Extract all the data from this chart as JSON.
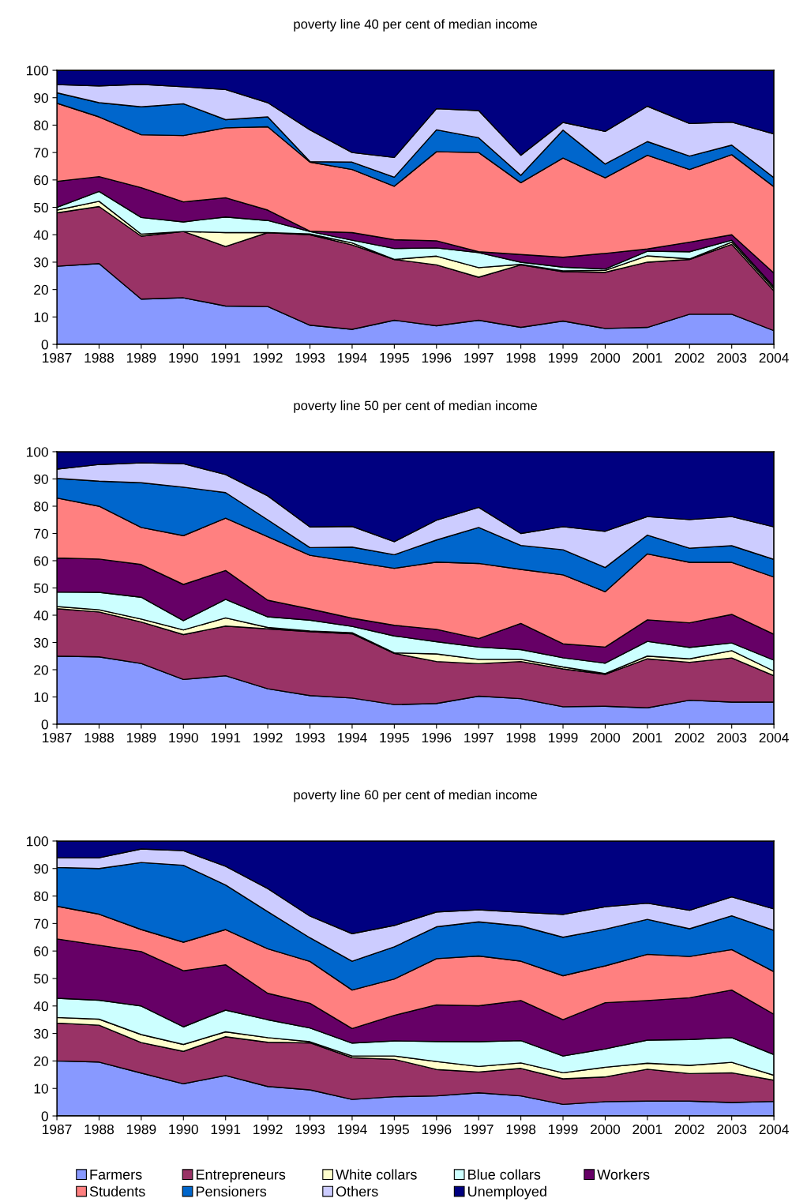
{
  "chart_data": [
    {
      "type": "area",
      "stacked": true,
      "title": "poverty line 40 per cent of median income",
      "ylim": [
        0,
        100
      ],
      "yticks": [
        0,
        10,
        20,
        30,
        40,
        50,
        60,
        70,
        80,
        90,
        100
      ],
      "grid": false,
      "legend": "bottom",
      "categories": [
        "1987",
        "1988",
        "1989",
        "1990",
        "1991",
        "1992",
        "1993",
        "1994",
        "1995",
        "1996",
        "1997",
        "1998",
        "1999",
        "2000",
        "2001",
        "2002",
        "2003",
        "2004"
      ],
      "series": [
        {
          "name": "Farmers",
          "color": "#8899ff",
          "values": [
            28.5,
            29.5,
            16.5,
            17,
            14,
            13.8,
            7,
            5.5,
            8.8,
            6.8,
            8.8,
            6.2,
            8.5,
            5.8,
            6.2,
            11,
            11,
            5
          ]
        },
        {
          "name": "Entrepreneurs",
          "color": "#993366",
          "values": [
            19.5,
            20.8,
            23,
            24.2,
            21.7,
            27,
            33,
            30.8,
            22.2,
            22.2,
            15.7,
            22.8,
            18,
            20.5,
            23.8,
            20,
            25.5,
            14.5
          ]
        },
        {
          "name": "White collars",
          "color": "#ffffcc",
          "values": [
            1,
            1.9,
            0.7,
            0,
            5.1,
            0,
            0.3,
            0.7,
            0,
            3.2,
            3.5,
            0.2,
            0.3,
            0.7,
            2.3,
            0.2,
            0.8,
            0.8
          ]
        },
        {
          "name": "Blue collars",
          "color": "#ccffff",
          "values": [
            1,
            3.6,
            6.1,
            3.5,
            5.7,
            4.4,
            0.9,
            1,
            4,
            3,
            5.5,
            0.8,
            1.4,
            0.5,
            1.7,
            2.6,
            0.7,
            0.7
          ]
        },
        {
          "name": "Workers",
          "color": "#660066",
          "values": [
            9.5,
            5.4,
            10.9,
            7.3,
            7,
            3.8,
            0.1,
            2.8,
            3.2,
            2.6,
            0.3,
            2.8,
            3.6,
            5.7,
            0.8,
            3.5,
            2,
            5
          ]
        },
        {
          "name": "Students",
          "color": "#ff8080",
          "values": [
            28.5,
            21.8,
            19.3,
            24.2,
            25.5,
            30.4,
            25.2,
            23,
            19.5,
            32.5,
            36.2,
            26.2,
            36.2,
            27.6,
            34.2,
            26.5,
            29.2,
            31.5
          ]
        },
        {
          "name": "Pensioners",
          "color": "#0066cc",
          "values": [
            3.8,
            5.2,
            10.2,
            11.6,
            3,
            3.6,
            0.2,
            2.7,
            3.3,
            8,
            5.4,
            2.7,
            10.2,
            5,
            5,
            4.9,
            3.5,
            3.3
          ]
        },
        {
          "name": "Others",
          "color": "#ccccff",
          "values": [
            3,
            6.1,
            8.2,
            6.2,
            11,
            5.2,
            11.6,
            3.5,
            7.2,
            7.7,
            9.9,
            7.3,
            2.8,
            11.9,
            12.9,
            11.9,
            8.4,
            16
          ]
        },
        {
          "name": "Unemployed",
          "color": "#000080",
          "values": [
            5.2,
            5.7,
            5.1,
            6,
            7,
            11.8,
            21.7,
            30,
            31.8,
            14,
            14.7,
            31,
            19,
            22.3,
            13.1,
            19.4,
            18.9,
            23.2
          ]
        }
      ]
    },
    {
      "type": "area",
      "stacked": true,
      "title": "poverty line 50 per cent of median income",
      "ylim": [
        0,
        100
      ],
      "yticks": [
        0,
        10,
        20,
        30,
        40,
        50,
        60,
        70,
        80,
        90,
        100
      ],
      "grid": false,
      "categories": [
        "1987",
        "1988",
        "1989",
        "1990",
        "1991",
        "1992",
        "1993",
        "1994",
        "1995",
        "1996",
        "1997",
        "1998",
        "1999",
        "2000",
        "2001",
        "2002",
        "2003",
        "2004"
      ],
      "series": [
        {
          "color": "#8899ff",
          "values": [
            25,
            24.7,
            22.3,
            16.4,
            17.8,
            13,
            10.5,
            9.6,
            7.2,
            7.6,
            10.3,
            9.4,
            6.4,
            6.6,
            6,
            8.8,
            8.1,
            8.1
          ]
        },
        {
          "color": "#993366",
          "values": [
            17.4,
            16.5,
            15.2,
            16.5,
            18.2,
            22,
            23.5,
            23.6,
            18.8,
            15.4,
            11.9,
            13.6,
            13.9,
            11.7,
            18,
            13.9,
            16.2,
            9.7
          ]
        },
        {
          "color": "#ffffcc",
          "values": [
            0.8,
            0.8,
            1.1,
            1.7,
            3,
            0.5,
            0.2,
            0.4,
            0.2,
            2.8,
            1.6,
            0.8,
            0.7,
            0.3,
            1,
            1.3,
            2.7,
            1.7
          ]
        },
        {
          "color": "#ccffff",
          "values": [
            5.3,
            6.4,
            8,
            3.4,
            6.8,
            3.9,
            4,
            2.3,
            6.2,
            4.5,
            4.5,
            3.6,
            3.4,
            3.8,
            5.4,
            4.2,
            2.8,
            4
          ]
        },
        {
          "color": "#660066",
          "values": [
            12.5,
            12.2,
            12,
            13.3,
            10.6,
            6.1,
            4.1,
            3,
            3.9,
            4.5,
            3.1,
            9.6,
            5.1,
            5.9,
            7.9,
            9,
            10.5,
            9.5
          ]
        },
        {
          "color": "#ff8080",
          "values": [
            22,
            19.4,
            13.6,
            17.9,
            19.2,
            23.3,
            19.7,
            20.7,
            20.9,
            24.7,
            27.6,
            19.8,
            25.3,
            20.3,
            24.2,
            22.2,
            19.1,
            21
          ]
        },
        {
          "color": "#0066cc",
          "values": [
            7.2,
            9.2,
            16.4,
            17.8,
            9.4,
            6.2,
            2.8,
            5.4,
            5,
            8.1,
            13.2,
            8.8,
            9.2,
            8.9,
            6.9,
            5.2,
            6.1,
            6.5
          ]
        },
        {
          "color": "#ccccff",
          "values": [
            3.4,
            6.1,
            7.3,
            8.6,
            6.6,
            8.8,
            7.6,
            7.6,
            4.8,
            7.3,
            7.4,
            4.4,
            8.5,
            13.3,
            6.8,
            10.5,
            10.7,
            11.9
          ]
        },
        {
          "color": "#000080",
          "values": [
            6.4,
            4.7,
            4.1,
            4.4,
            8.4,
            16.2,
            27.6,
            27.4,
            33,
            25.1,
            20.4,
            30,
            27.5,
            29.2,
            23.8,
            24.9,
            23.8,
            27.6
          ]
        }
      ]
    },
    {
      "type": "area",
      "stacked": true,
      "title": "poverty line 60 per cent of median income",
      "ylim": [
        0,
        100
      ],
      "yticks": [
        0,
        10,
        20,
        30,
        40,
        50,
        60,
        70,
        80,
        90,
        100
      ],
      "grid": false,
      "categories": [
        "1987",
        "1988",
        "1989",
        "1990",
        "1991",
        "1992",
        "1993",
        "1994",
        "1995",
        "1996",
        "1997",
        "1998",
        "1999",
        "2000",
        "2001",
        "2002",
        "2003",
        "2004"
      ],
      "series": [
        {
          "color": "#8899ff",
          "values": [
            20,
            19.6,
            15.6,
            11.7,
            14.7,
            10.7,
            9.5,
            6,
            7,
            7.3,
            8.4,
            7.3,
            4.2,
            5.2,
            5.4,
            5.4,
            4.9,
            5.3
          ]
        },
        {
          "color": "#993366",
          "values": [
            13.8,
            13.4,
            11.1,
            11.8,
            14.1,
            16.1,
            17.1,
            15.2,
            13.6,
            9.6,
            7.6,
            10,
            9.3,
            9,
            11.6,
            10,
            10.8,
            7.7
          ]
        },
        {
          "color": "#ffffcc",
          "values": [
            2,
            2.2,
            2.9,
            2.5,
            1.8,
            1.7,
            0.4,
            0.6,
            1.2,
            2.9,
            2,
            2,
            2.2,
            3.5,
            2.2,
            3,
            3.8,
            1.8
          ]
        },
        {
          "color": "#ccffff",
          "values": [
            7,
            6.9,
            10.4,
            6.4,
            7.9,
            6.5,
            5,
            4.7,
            5.5,
            7.3,
            9,
            8.1,
            6.1,
            6.7,
            8.4,
            9.4,
            9,
            7.5
          ]
        },
        {
          "color": "#660066",
          "values": [
            21.6,
            20,
            19.8,
            20.4,
            16.5,
            9.6,
            9,
            5.3,
            9.3,
            13.3,
            13.1,
            14.6,
            13.2,
            16.8,
            14.4,
            15.2,
            17.3,
            14.7
          ]
        },
        {
          "color": "#ff8080",
          "values": [
            11.9,
            11.3,
            8,
            10.4,
            12.8,
            16.2,
            15.2,
            14,
            13.2,
            16.8,
            18.1,
            14.3,
            16,
            13.4,
            16.8,
            15,
            14.7,
            15.5
          ]
        },
        {
          "color": "#0066cc",
          "values": [
            14.1,
            16.6,
            24.4,
            28,
            16.2,
            13.5,
            8.6,
            10.5,
            11.7,
            11.6,
            12.4,
            12.8,
            14,
            13.3,
            12.7,
            10.1,
            12.3,
            15
          ]
        },
        {
          "color": "#ccccff",
          "values": [
            3.6,
            3.9,
            4.9,
            5.3,
            6.8,
            8.4,
            7.9,
            10,
            7.8,
            5.4,
            4.4,
            5,
            8.3,
            8.2,
            5.9,
            6.7,
            6.9,
            7.8
          ]
        },
        {
          "color": "#000080",
          "values": [
            6,
            6.1,
            2.9,
            3.5,
            9.2,
            17.3,
            27.3,
            33.7,
            30.7,
            25.8,
            25,
            25.9,
            26.7,
            23.9,
            22.6,
            25.2,
            20.3,
            24.7
          ]
        }
      ]
    }
  ]
}
